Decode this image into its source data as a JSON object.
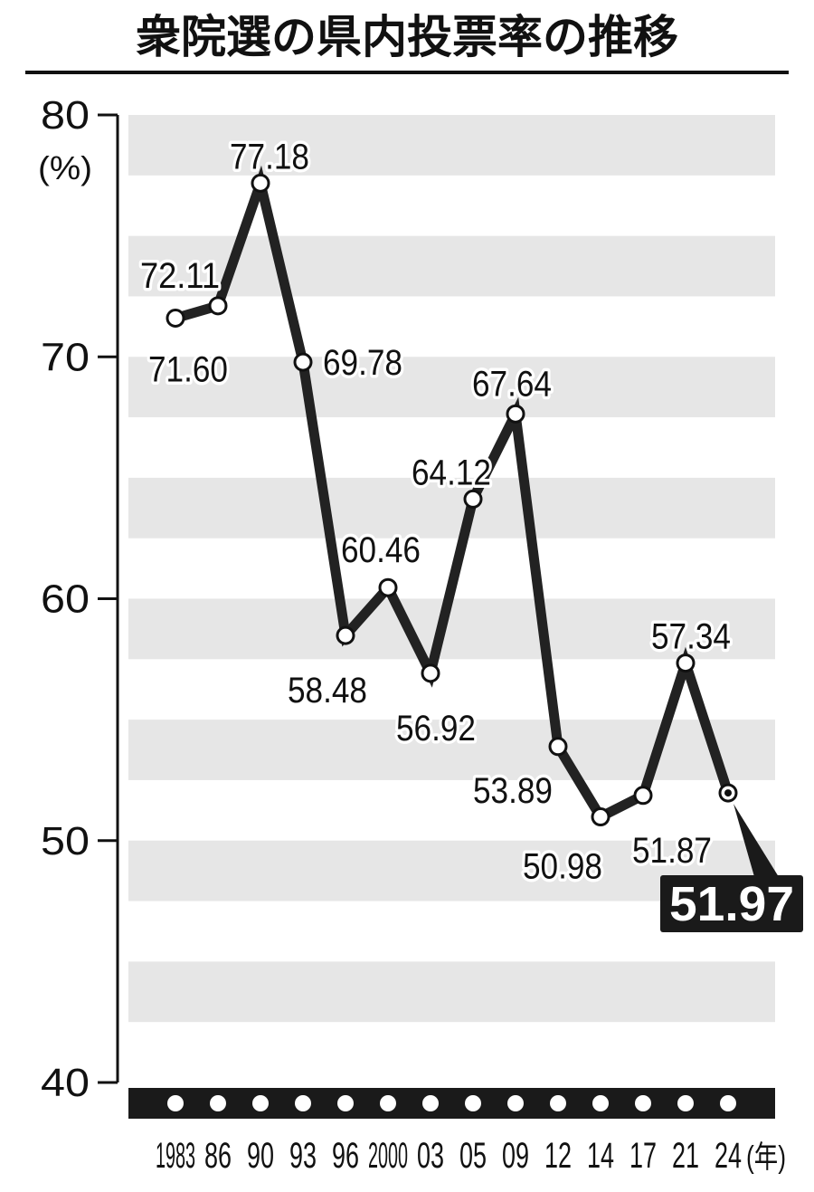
{
  "title": "衆院選の県内投票率の推移",
  "chart_data": {
    "type": "line",
    "title": "衆院選の県内投票率の推移",
    "ylabel": "(%)",
    "xunit": "(年)",
    "ylim": [
      40,
      80
    ],
    "yticks": [
      40,
      50,
      60,
      70,
      80
    ],
    "categories": [
      "1983",
      "86",
      "90",
      "93",
      "96",
      "2000",
      "03",
      "05",
      "09",
      "12",
      "14",
      "17",
      "21",
      "24"
    ],
    "values": [
      71.6,
      72.11,
      77.18,
      69.78,
      58.48,
      60.46,
      56.92,
      64.12,
      67.64,
      53.89,
      50.98,
      51.87,
      57.34,
      51.97
    ],
    "labels": [
      "71.60",
      "72.11",
      "77.18",
      "69.78",
      "58.48",
      "60.46",
      "56.92",
      "64.12",
      "67.64",
      "53.89",
      "50.98",
      "51.87",
      "57.34",
      "51.97"
    ],
    "highlight_index": 13,
    "colors": {
      "line": "#222222",
      "band": "#e6e6e6",
      "bar": "#1a1a1a",
      "highlight_bg": "#1a1a1a",
      "highlight_text": "#ffffff"
    }
  }
}
